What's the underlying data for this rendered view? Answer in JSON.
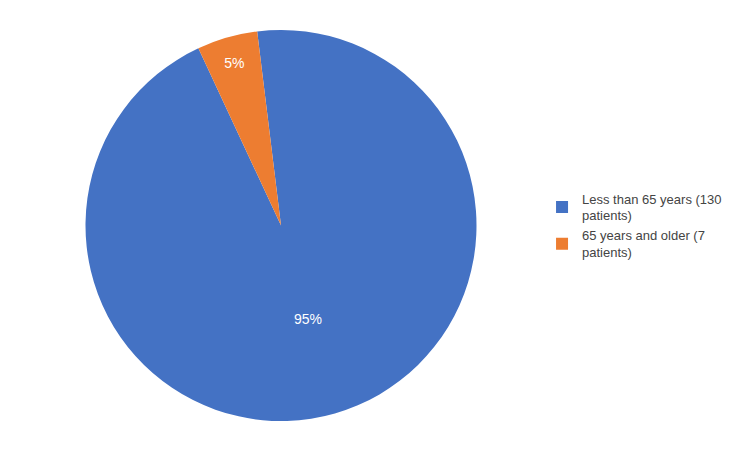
{
  "chart_data": {
    "type": "pie",
    "categories": [
      "Less than 65 years (130\npatients)",
      "65 years and older (7\npatients)"
    ],
    "values": [
      95,
      5
    ],
    "value_labels": [
      "95%",
      "5%"
    ],
    "colors": [
      "#4472C4",
      "#ED7D31"
    ],
    "data_labels": true,
    "legend": "right"
  }
}
